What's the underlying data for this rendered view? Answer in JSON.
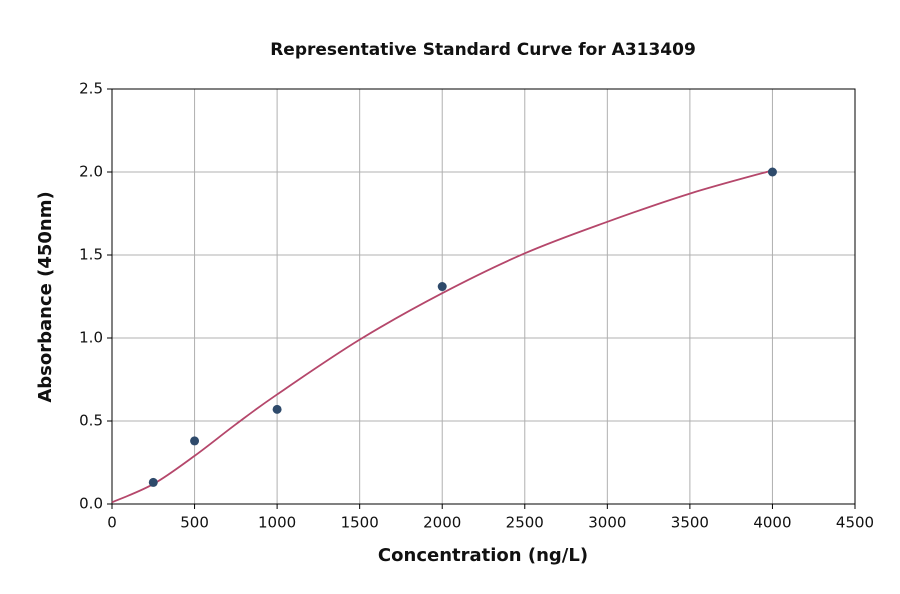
{
  "chart_data": {
    "type": "scatter",
    "title": "Representative Standard Curve for A313409",
    "x_label": "Concentration (ng/L)",
    "y_label": "Absorbance (450nm)",
    "xlim": [
      0,
      4500
    ],
    "ylim": [
      0,
      2.5
    ],
    "xticks": [
      0,
      500,
      1000,
      1500,
      2000,
      2500,
      3000,
      3500,
      4000,
      4500
    ],
    "yticks": [
      {
        "value": 0,
        "label": "0.0"
      },
      0.5,
      {
        "value": 1,
        "label": "1.0"
      },
      1.5,
      {
        "value": 2,
        "label": "2.0"
      },
      2.5
    ],
    "grid": true,
    "series": [
      {
        "type": "line",
        "color": "#b5476b",
        "x": [
          0,
          250,
          500,
          750,
          1000,
          1500,
          2000,
          2500,
          3000,
          3500,
          4000
        ],
        "values": [
          0.01,
          0.12,
          0.29,
          0.48,
          0.66,
          0.99,
          1.27,
          1.51,
          1.7,
          1.87,
          2.01
        ]
      },
      {
        "type": "scatter",
        "color": "#2e4a6b",
        "x": [
          250,
          500,
          1000,
          2000,
          4000
        ],
        "values": [
          0.13,
          0.38,
          0.57,
          1.31,
          2.0
        ]
      }
    ]
  }
}
